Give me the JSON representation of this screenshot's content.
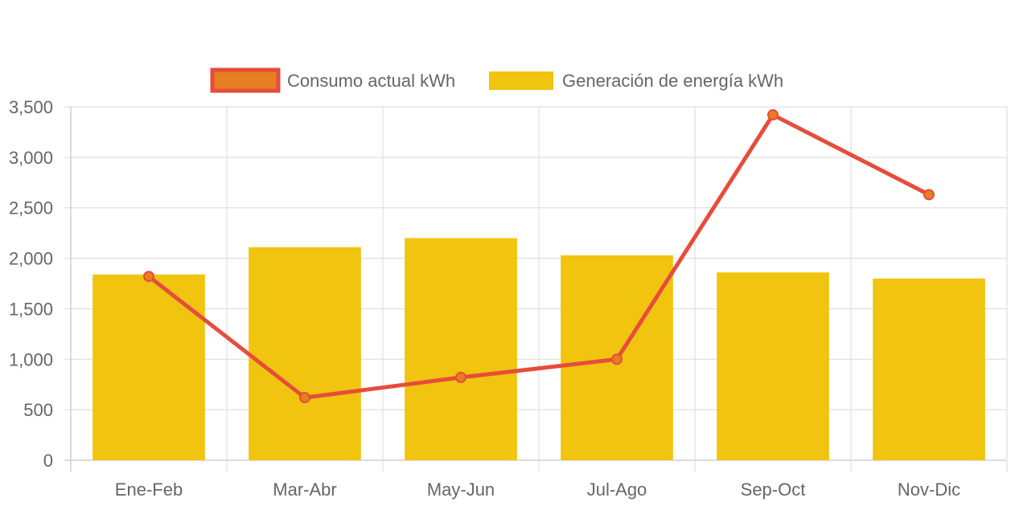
{
  "chart_data": {
    "type": "bar",
    "title": "",
    "xlabel": "",
    "ylabel": "",
    "categories": [
      "Ene-Feb",
      "Mar-Abr",
      "May-Jun",
      "Jul-Ago",
      "Sep-Oct",
      "Nov-Dic"
    ],
    "ylim": [
      0,
      3500
    ],
    "yticks": [
      0,
      500,
      1000,
      1500,
      2000,
      2500,
      3000,
      3500
    ],
    "ytick_labels": [
      "0",
      "500",
      "1,000",
      "1,500",
      "2,000",
      "2,500",
      "3,000",
      "3,500"
    ],
    "grid": true,
    "legend_position": "top",
    "series": [
      {
        "name": "Consumo actual kWh",
        "type": "line",
        "values": [
          1820,
          620,
          820,
          1000,
          3420,
          2630
        ],
        "color": "#e74c3c",
        "point_color": "#e67e22"
      },
      {
        "name": "Generación de energía kWh",
        "type": "bar",
        "values": [
          1840,
          2110,
          2200,
          2030,
          1860,
          1800
        ],
        "color": "#f1c40f"
      }
    ]
  }
}
